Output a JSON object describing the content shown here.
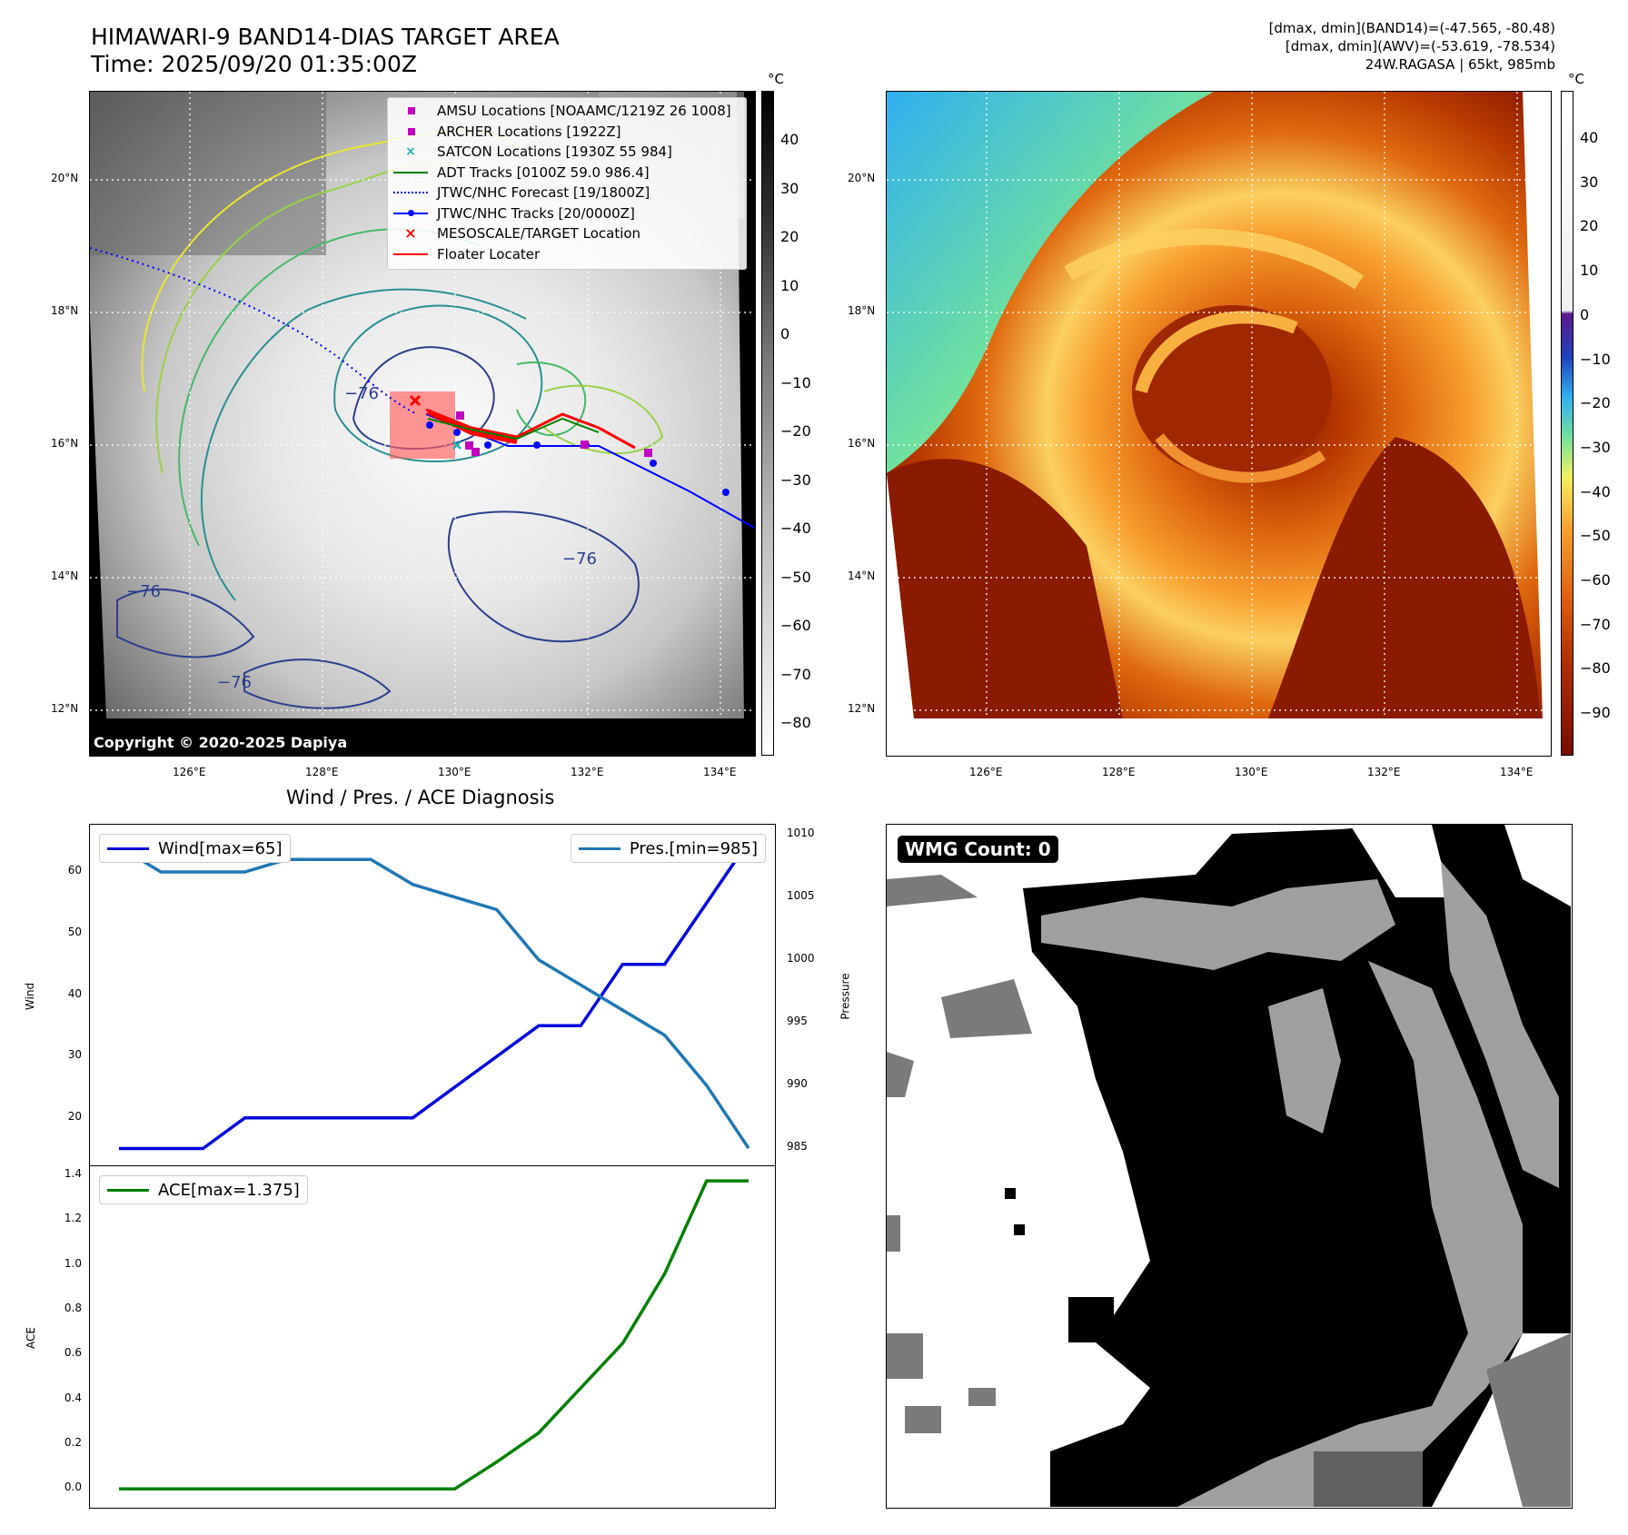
{
  "header": {
    "title_line1": "HIMAWARI-9 BAND14-DIAS TARGET AREA",
    "title_line2": "Time: 2025/09/20 01:35:00Z",
    "info_line1": "[dmax, dmin](BAND14)=(-47.565, -80.48)",
    "info_line2": "[dmax, dmin](AWV)=(-53.619, -78.534)",
    "info_line3": "24W.RAGASA | 65kt, 985mb"
  },
  "map": {
    "lon_ticks": [
      "126°E",
      "128°E",
      "130°E",
      "132°E",
      "134°E"
    ],
    "lat_ticks": [
      "20°N",
      "18°N",
      "16°N",
      "14°N",
      "12°N"
    ],
    "copyright": "Copyright © 2020-2025 Dapiya",
    "contour_label": "−76"
  },
  "legend": {
    "items": [
      {
        "label": "AMSU Locations [NOAAMC/1219Z 26 1008]",
        "color": "#c000c0",
        "marker": "square"
      },
      {
        "label": "ARCHER Locations [1922Z]",
        "color": "#c000c0",
        "marker": "square"
      },
      {
        "label": "SATCON Locations [1930Z 55 984]",
        "color": "#20b0b0",
        "marker": "x"
      },
      {
        "label": "ADT Tracks [0100Z 59.0 986.4]",
        "color": "#008000",
        "marker": "line"
      },
      {
        "label": "JTWC/NHC Forecast [19/1800Z]",
        "color": "#0000ff",
        "marker": "dotted"
      },
      {
        "label": "JTWC/NHC Tracks [20/0000Z]",
        "color": "#0000ff",
        "marker": "line-dot"
      },
      {
        "label": "MESOSCALE/TARGET Location",
        "color": "#ff0000",
        "marker": "x"
      },
      {
        "label": "Floater Locater",
        "color": "#ff0000",
        "marker": "line"
      }
    ]
  },
  "colorbars": {
    "unit": "°C",
    "gray_ticks": [
      "40",
      "30",
      "20",
      "10",
      "0",
      "−10",
      "−20",
      "−30",
      "−40",
      "−50",
      "−60",
      "−70",
      "−80"
    ],
    "color_ticks": [
      "40",
      "30",
      "20",
      "10",
      "0",
      "−10",
      "−20",
      "−30",
      "−40",
      "−50",
      "−60",
      "−70",
      "−80",
      "−90"
    ]
  },
  "diagnosis": {
    "title": "Wind / Pres. / ACE Diagnosis",
    "wind_axis_label": "Wind",
    "pressure_axis_label": "Pressure",
    "ace_axis_label": "ACE",
    "wind_legend": "Wind[max=65]",
    "pres_legend": "Pres.[min=985]",
    "ace_legend": "ACE[max=1.375]"
  },
  "wmg": {
    "label": "WMG Count: 0"
  },
  "chart_data": [
    {
      "type": "line",
      "title": "Wind / Pres. / ACE Diagnosis",
      "ylabel": "Wind",
      "ylim": [
        13,
        67
      ],
      "yticks": [
        20,
        30,
        40,
        50,
        60
      ],
      "series": [
        {
          "name": "Wind[max=65]",
          "color": "#0000dd",
          "x": [
            0,
            1,
            2,
            3,
            4,
            5,
            6,
            7,
            8,
            9,
            10,
            11,
            12,
            13,
            14,
            15
          ],
          "values": [
            15,
            15,
            15,
            20,
            20,
            20,
            20,
            20,
            25,
            30,
            35,
            35,
            45,
            45,
            55,
            65
          ]
        }
      ]
    },
    {
      "type": "line",
      "ylabel": "Pressure",
      "ylim": [
        984,
        1010.4
      ],
      "yticks": [
        985,
        990,
        995,
        1000,
        1005,
        1010
      ],
      "series": [
        {
          "name": "Pres.[min=985]",
          "color": "#1f77b4",
          "x": [
            0,
            1,
            2,
            3,
            4,
            5,
            6,
            7,
            8,
            9,
            10,
            11,
            12,
            13,
            14,
            15
          ],
          "values": [
            1009,
            1007,
            1007,
            1007,
            1008,
            1008,
            1008,
            1006,
            1005,
            1004,
            1000,
            998,
            996,
            994,
            990,
            985
          ]
        }
      ]
    },
    {
      "type": "line",
      "ylabel": "ACE",
      "ylim": [
        -0.06,
        1.42
      ],
      "yticks": [
        0.0,
        0.2,
        0.4,
        0.6,
        0.8,
        1.0,
        1.2,
        1.4
      ],
      "ytick_labels": [
        "0.0",
        "0.2",
        "0.4",
        "0.6",
        "0.8",
        "1.0",
        "1.2",
        "1.4"
      ],
      "series": [
        {
          "name": "ACE[max=1.375]",
          "color": "#008000",
          "x": [
            0,
            1,
            2,
            3,
            4,
            5,
            6,
            7,
            8,
            9,
            10,
            11,
            12,
            13,
            14,
            15
          ],
          "values": [
            0,
            0,
            0,
            0,
            0,
            0,
            0,
            0,
            0,
            0.12,
            0.25,
            0.45,
            0.65,
            0.96,
            1.375,
            1.375
          ]
        }
      ]
    }
  ]
}
